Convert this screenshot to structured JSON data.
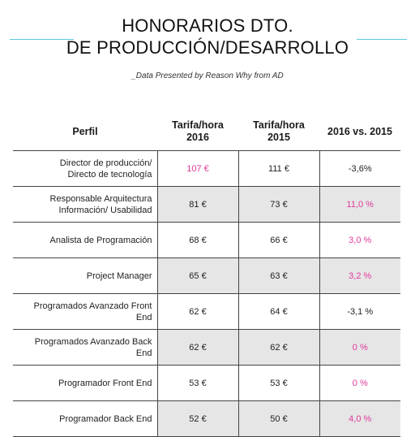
{
  "title_line1": "HONORARIOS DTO.",
  "title_line2": "DE PRODUCCIÓN/DESARROLLO",
  "subtitle": "_Data Presented by Reason Why from AD",
  "accent_color": "#e0389a",
  "rule_color": "#5fc7dd",
  "chart_data": {
    "type": "table",
    "headers": {
      "perfil": "Perfil",
      "rate2016_l1": "Tarifa/hora",
      "rate2016_l2": "2016",
      "rate2015_l1": "Tarifa/hora",
      "rate2015_l2": "2015",
      "change": "2016 vs. 2015"
    },
    "rows": [
      {
        "perfil_l1": "Director de producción/",
        "perfil_l2": "Directo de tecnología",
        "rate2016": "107 €",
        "rate2015": "111 €",
        "change": "-3,6%"
      },
      {
        "perfil_l1": "Responsable Arquitectura",
        "perfil_l2": "Información/ Usabilidad",
        "rate2016": "81 €",
        "rate2015": "73 €",
        "change": "11,0 %"
      },
      {
        "perfil_l1": "Analista de Programación",
        "perfil_l2": "",
        "rate2016": "68 €",
        "rate2015": "66 €",
        "change": "3,0 %"
      },
      {
        "perfil_l1": "Project Manager",
        "perfil_l2": "",
        "rate2016": "65 €",
        "rate2015": "63 €",
        "change": "3,2 %"
      },
      {
        "perfil_l1": "Programados Avanzado Front",
        "perfil_l2": "End",
        "rate2016": "62 €",
        "rate2015": "64 €",
        "change": "-3,1 %"
      },
      {
        "perfil_l1": "Programados Avanzado Back",
        "perfil_l2": "End",
        "rate2016": "62 €",
        "rate2015": "62 €",
        "change": "0 %"
      },
      {
        "perfil_l1": "Programador Front End",
        "perfil_l2": "",
        "rate2016": "53 €",
        "rate2015": "53 €",
        "change": "0 %"
      },
      {
        "perfil_l1": "Programador Back End",
        "perfil_l2": "",
        "rate2016": "52 €",
        "rate2015": "50 €",
        "change": "4,0 %"
      }
    ],
    "highlights": [
      {
        "row": 0,
        "column": "rate2016"
      },
      {
        "row": 1,
        "column": "change"
      },
      {
        "row": 2,
        "column": "change"
      },
      {
        "row": 3,
        "column": "change"
      },
      {
        "row": 5,
        "column": "change"
      },
      {
        "row": 6,
        "column": "change"
      },
      {
        "row": 7,
        "column": "change"
      }
    ]
  }
}
